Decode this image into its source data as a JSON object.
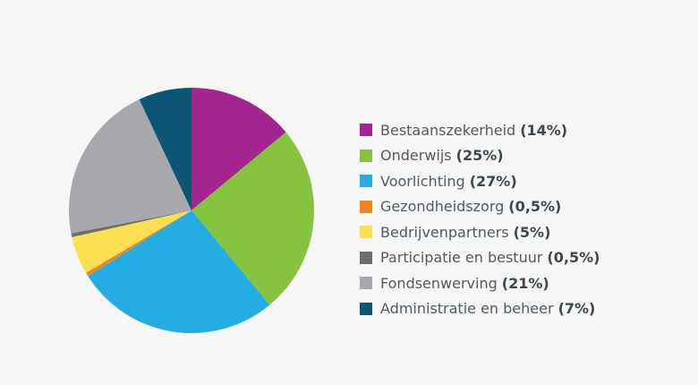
{
  "chart_data": {
    "type": "pie",
    "title": "",
    "slices": [
      {
        "label": "Bestaanszekerheid",
        "value": 14,
        "value_label": "(14%)",
        "color": "#a4258f"
      },
      {
        "label": "Onderwijs",
        "value": 25,
        "value_label": "(25%)",
        "color": "#86c43f"
      },
      {
        "label": "Voorlichting",
        "value": 27,
        "value_label": "(27%)",
        "color": "#23ade2"
      },
      {
        "label": "Gezondheidszorg",
        "value": 0.5,
        "value_label": "(0,5%)",
        "color": "#f08421"
      },
      {
        "label": "Bedrijvenpartners",
        "value": 5,
        "value_label": "(5%)",
        "color": "#fde051"
      },
      {
        "label": "Participatie en bestuur",
        "value": 0.5,
        "value_label": "(0,5%)",
        "color": "#6d6e70"
      },
      {
        "label": "Fondsenwerving",
        "value": 21,
        "value_label": "(21%)",
        "color": "#a6a8ab"
      },
      {
        "label": "Administratie en beheer",
        "value": 7,
        "value_label": "(7%)",
        "color": "#0d5574"
      }
    ],
    "start_angle": "12 o'clock",
    "direction": "clockwise",
    "legend_position": "right"
  }
}
